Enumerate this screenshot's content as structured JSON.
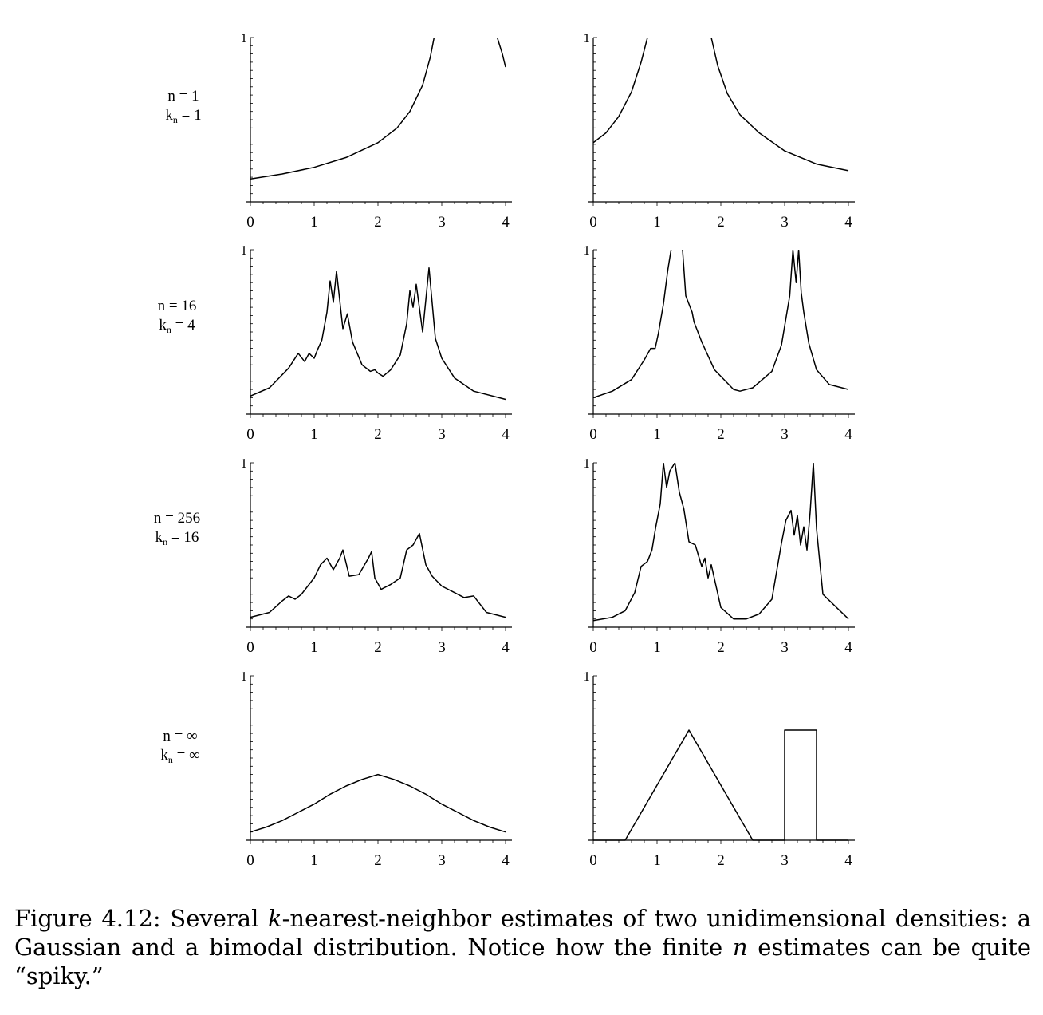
{
  "figure": {
    "caption": {
      "label": "Figure 4.12:",
      "part1": "Several",
      "k": "k",
      "part2": "-nearest-neighbor estimates of two unidimensional densities: a Gaussian and a bimodal distribution. Notice how the finite",
      "n": "n",
      "part3": "estimates can be quite “spiky.”"
    },
    "row_labels": [
      {
        "n": "n = 1",
        "k": "k",
        "sub": "n",
        "kval": " = 1"
      },
      {
        "n": "n = 16",
        "k": "k",
        "sub": "n",
        "kval": " = 4"
      },
      {
        "n": "n = 256",
        "k": "k",
        "sub": "n",
        "kval": " = 16"
      },
      {
        "n": "n = ∞",
        "k": "k",
        "sub": "n",
        "kval": " = ∞"
      }
    ]
  },
  "chart_data": [
    {
      "type": "line",
      "panel": "row1-left",
      "xlim": [
        0,
        4
      ],
      "ylim": [
        0,
        1
      ],
      "xticks": [
        "0",
        "1",
        "2",
        "3",
        "4"
      ],
      "yticks": [
        "1"
      ],
      "series": [
        {
          "x": [
            0,
            0.5,
            1,
            1.5,
            2,
            2.3,
            2.5,
            2.7,
            2.82,
            2.88
          ],
          "y": [
            0.14,
            0.17,
            0.21,
            0.27,
            0.36,
            0.45,
            0.55,
            0.71,
            0.88,
            1.0
          ]
        },
        {
          "x": [
            3.87,
            3.95,
            4.0
          ],
          "y": [
            1.0,
            0.9,
            0.82
          ]
        }
      ]
    },
    {
      "type": "line",
      "panel": "row1-right",
      "xlim": [
        0,
        4
      ],
      "ylim": [
        0,
        1
      ],
      "xticks": [
        "0",
        "1",
        "2",
        "3",
        "4"
      ],
      "yticks": [
        "1"
      ],
      "series": [
        {
          "x": [
            0,
            0.2,
            0.4,
            0.6,
            0.75,
            0.85
          ],
          "y": [
            0.36,
            0.42,
            0.52,
            0.67,
            0.85,
            1.0
          ]
        },
        {
          "x": [
            1.85,
            1.95,
            2.1,
            2.3,
            2.6,
            3.0,
            3.5,
            4.0
          ],
          "y": [
            1.0,
            0.83,
            0.66,
            0.53,
            0.42,
            0.31,
            0.23,
            0.19
          ]
        }
      ]
    },
    {
      "type": "line",
      "panel": "row2-left",
      "xlim": [
        0,
        4
      ],
      "ylim": [
        0,
        1
      ],
      "xticks": [
        "0",
        "1",
        "2",
        "3",
        "4"
      ],
      "yticks": [
        "1"
      ],
      "series": [
        {
          "x": [
            0,
            0.3,
            0.6,
            0.75,
            0.85,
            0.92,
            1.0,
            1.05,
            1.12,
            1.2,
            1.25,
            1.3,
            1.35,
            1.45,
            1.52,
            1.6,
            1.75,
            1.88,
            1.95,
            2.0,
            2.08,
            2.2,
            2.35,
            2.45,
            2.5,
            2.55,
            2.6,
            2.7,
            2.8,
            2.9,
            3.0,
            3.2,
            3.5,
            4.0
          ],
          "y": [
            0.11,
            0.16,
            0.28,
            0.37,
            0.32,
            0.37,
            0.34,
            0.39,
            0.45,
            0.62,
            0.81,
            0.68,
            0.87,
            0.52,
            0.61,
            0.44,
            0.3,
            0.26,
            0.27,
            0.25,
            0.23,
            0.27,
            0.36,
            0.55,
            0.75,
            0.65,
            0.79,
            0.5,
            0.89,
            0.46,
            0.34,
            0.22,
            0.14,
            0.09
          ]
        }
      ]
    },
    {
      "type": "line",
      "panel": "row2-right",
      "xlim": [
        0,
        4
      ],
      "ylim": [
        0,
        1
      ],
      "xticks": [
        "0",
        "1",
        "2",
        "3",
        "4"
      ],
      "yticks": [
        "1"
      ],
      "series": [
        {
          "x": [
            0,
            0.3,
            0.6,
            0.8,
            0.9,
            0.97,
            1.02,
            1.1,
            1.17,
            1.22
          ],
          "y": [
            0.1,
            0.14,
            0.21,
            0.33,
            0.4,
            0.4,
            0.49,
            0.67,
            0.88,
            1.0
          ]
        },
        {
          "x": [
            1.4,
            1.45,
            1.55,
            1.58,
            1.7,
            1.9,
            2.2,
            2.3,
            2.5,
            2.8,
            2.95,
            3.08,
            3.13,
            3.18,
            3.22,
            3.26,
            3.3,
            3.38,
            3.5,
            3.7,
            4.0
          ],
          "y": [
            1.0,
            0.72,
            0.62,
            0.56,
            0.44,
            0.27,
            0.15,
            0.14,
            0.16,
            0.26,
            0.42,
            0.72,
            1.0,
            0.8,
            1.0,
            0.74,
            0.62,
            0.43,
            0.27,
            0.18,
            0.15
          ]
        }
      ]
    },
    {
      "type": "line",
      "panel": "row3-left",
      "xlim": [
        0,
        4
      ],
      "ylim": [
        0,
        1
      ],
      "xticks": [
        "0",
        "1",
        "2",
        "3",
        "4"
      ],
      "yticks": [
        "1"
      ],
      "series": [
        {
          "x": [
            0,
            0.3,
            0.5,
            0.6,
            0.7,
            0.8,
            0.9,
            1.0,
            1.1,
            1.2,
            1.3,
            1.4,
            1.45,
            1.55,
            1.7,
            1.85,
            1.9,
            1.95,
            2.05,
            2.2,
            2.35,
            2.45,
            2.55,
            2.65,
            2.75,
            2.85,
            3.0,
            3.2,
            3.35,
            3.5,
            3.7,
            4.0
          ],
          "y": [
            0.06,
            0.09,
            0.16,
            0.19,
            0.17,
            0.2,
            0.25,
            0.3,
            0.38,
            0.42,
            0.35,
            0.42,
            0.47,
            0.31,
            0.32,
            0.42,
            0.46,
            0.3,
            0.23,
            0.26,
            0.3,
            0.47,
            0.5,
            0.57,
            0.38,
            0.31,
            0.25,
            0.21,
            0.18,
            0.19,
            0.09,
            0.06
          ]
        }
      ]
    },
    {
      "type": "line",
      "panel": "row3-right",
      "xlim": [
        0,
        4
      ],
      "ylim": [
        0,
        1
      ],
      "xticks": [
        "0",
        "1",
        "2",
        "3",
        "4"
      ],
      "yticks": [
        "1"
      ],
      "series": [
        {
          "x": [
            0,
            0.3,
            0.5,
            0.65,
            0.75,
            0.85,
            0.92,
            0.98,
            1.05,
            1.1,
            1.15,
            1.2,
            1.28,
            1.35,
            1.42,
            1.5,
            1.6,
            1.7,
            1.75,
            1.8,
            1.85,
            2.0,
            2.2,
            2.4,
            2.6,
            2.8,
            2.95,
            3.02,
            3.1,
            3.15,
            3.2,
            3.25,
            3.3,
            3.35,
            3.4,
            3.45,
            3.5,
            3.6,
            4.0
          ],
          "y": [
            0.04,
            0.06,
            0.1,
            0.21,
            0.37,
            0.4,
            0.47,
            0.61,
            0.75,
            1.0,
            0.85,
            0.95,
            1.0,
            0.82,
            0.72,
            0.52,
            0.5,
            0.37,
            0.42,
            0.3,
            0.38,
            0.12,
            0.05,
            0.05,
            0.08,
            0.17,
            0.51,
            0.65,
            0.71,
            0.56,
            0.68,
            0.5,
            0.61,
            0.47,
            0.7,
            1.0,
            0.6,
            0.2,
            0.05
          ]
        }
      ]
    },
    {
      "type": "line",
      "panel": "row4-left",
      "xlim": [
        0,
        4
      ],
      "ylim": [
        0,
        1
      ],
      "xticks": [
        "0",
        "1",
        "2",
        "3",
        "4"
      ],
      "yticks": [
        "1"
      ],
      "series": [
        {
          "x": [
            0,
            0.25,
            0.5,
            0.75,
            1,
            1.25,
            1.5,
            1.75,
            2,
            2.25,
            2.5,
            2.75,
            3,
            3.25,
            3.5,
            3.75,
            4
          ],
          "y": [
            0.05,
            0.08,
            0.12,
            0.17,
            0.22,
            0.28,
            0.33,
            0.37,
            0.4,
            0.37,
            0.33,
            0.28,
            0.22,
            0.17,
            0.12,
            0.08,
            0.05
          ]
        }
      ]
    },
    {
      "type": "line",
      "panel": "row4-right",
      "xlim": [
        0,
        4
      ],
      "ylim": [
        0,
        1
      ],
      "xticks": [
        "0",
        "1",
        "2",
        "3",
        "4"
      ],
      "yticks": [
        "1"
      ],
      "series": [
        {
          "x": [
            0,
            0.5,
            1.5,
            2.5,
            3,
            3,
            3.5,
            3.5,
            4
          ],
          "y": [
            0,
            0,
            0.67,
            0,
            0,
            0.67,
            0.67,
            0,
            0
          ]
        }
      ]
    }
  ]
}
